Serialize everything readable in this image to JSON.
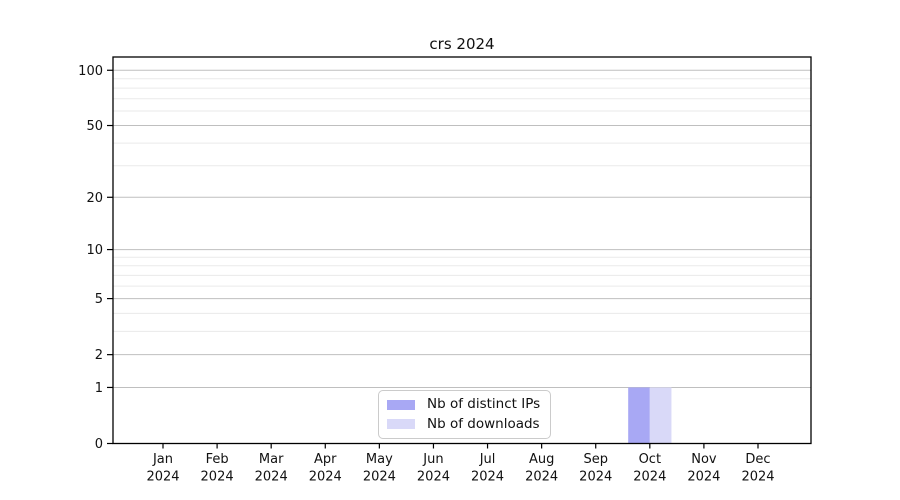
{
  "figure": {
    "kind": "static-plot-screenshot"
  },
  "chart_data": {
    "type": "bar",
    "title": "crs 2024",
    "categories": [
      "Jan",
      "Feb",
      "Mar",
      "Apr",
      "May",
      "Jun",
      "Jul",
      "Aug",
      "Sep",
      "Oct",
      "Nov",
      "Dec"
    ],
    "x_year_label": "2024",
    "series": [
      {
        "name": "Nb of distinct IPs",
        "color": "#a8a8f4",
        "values": [
          0,
          0,
          0,
          0,
          0,
          0,
          0,
          0,
          0,
          1,
          0,
          0
        ]
      },
      {
        "name": "Nb of downloads",
        "color": "#d9d9f8",
        "values": [
          0,
          0,
          0,
          0,
          0,
          0,
          0,
          0,
          0,
          1,
          0,
          0
        ]
      }
    ],
    "xlabel": "",
    "ylabel": "",
    "yscale": "log1p",
    "ylim": [
      0,
      118
    ],
    "yticks": [
      0,
      1,
      2,
      5,
      10,
      20,
      50,
      100
    ],
    "yticks_minor": [
      3,
      4,
      6,
      7,
      8,
      9,
      30,
      40,
      60,
      70,
      80,
      90
    ],
    "grid": true,
    "legend": {
      "position": "lower center",
      "labels": [
        "Nb of distinct IPs",
        "Nb of downloads"
      ]
    },
    "colors": {
      "axis": "#000000",
      "major_grid": "#bfbfbf",
      "minor_grid": "#eaeaea",
      "text": "#111111"
    }
  }
}
